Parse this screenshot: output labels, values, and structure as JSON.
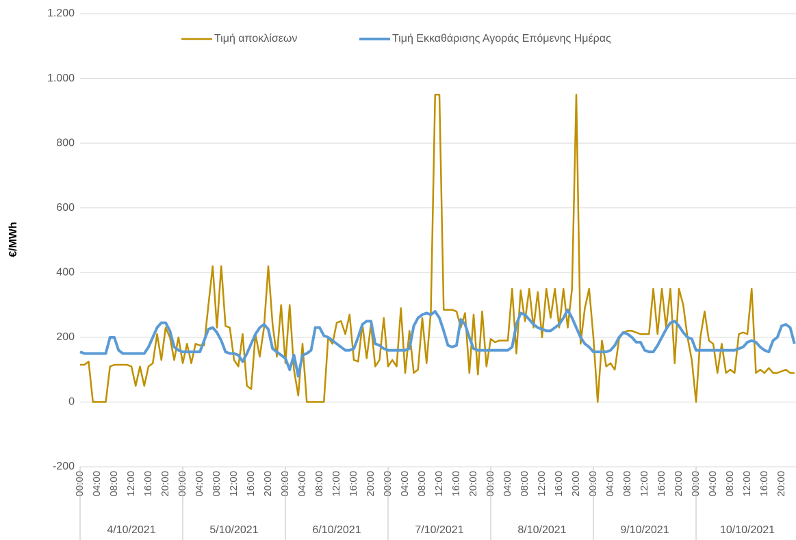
{
  "chart_data": {
    "type": "line",
    "y_label": "€/MWh",
    "ylim": [
      -200,
      1200
    ],
    "yticks": [
      -200,
      0,
      200,
      400,
      600,
      800,
      {
        "value": 1000,
        "label": "1.000"
      },
      {
        "value": 1200,
        "label": "1.200"
      }
    ],
    "grid": true,
    "legend": "top",
    "groups": [
      "4/10/2021",
      "5/10/2021",
      "6/10/2021",
      "7/10/2021",
      "8/10/2021",
      "9/10/2021",
      "10/10/2021"
    ],
    "categories": [
      "00:00",
      null,
      null,
      null,
      "04:00",
      null,
      null,
      null,
      "08:00",
      null,
      null,
      null,
      "12:00",
      null,
      null,
      null,
      "16:00",
      null,
      null,
      null,
      "20:00",
      null,
      null,
      null,
      "00:00",
      null,
      null,
      null,
      "04:00",
      null,
      null,
      null,
      "08:00",
      null,
      null,
      null,
      "12:00",
      null,
      null,
      null,
      "16:00",
      null,
      null,
      null,
      "20:00",
      null,
      null,
      null,
      "00:00",
      null,
      null,
      null,
      "04:00",
      null,
      null,
      null,
      "08:00",
      null,
      null,
      null,
      "12:00",
      null,
      null,
      null,
      "16:00",
      null,
      null,
      null,
      "20:00",
      null,
      null,
      null,
      "00:00",
      null,
      null,
      null,
      "04:00",
      null,
      null,
      null,
      "08:00",
      null,
      null,
      null,
      "12:00",
      null,
      null,
      null,
      "16:00",
      null,
      null,
      null,
      "20:00",
      null,
      null,
      null,
      "00:00",
      null,
      null,
      null,
      "04:00",
      null,
      null,
      null,
      "08:00",
      null,
      null,
      null,
      "12:00",
      null,
      null,
      null,
      "16:00",
      null,
      null,
      null,
      "20:00",
      null,
      null,
      null,
      "00:00",
      null,
      null,
      null,
      "04:00",
      null,
      null,
      null,
      "08:00",
      null,
      null,
      null,
      "12:00",
      null,
      null,
      null,
      "16:00",
      null,
      null,
      null,
      "20:00",
      null,
      null,
      null,
      "00:00",
      null,
      null,
      null,
      "04:00",
      null,
      null,
      null,
      "08:00",
      null,
      null,
      null,
      "12:00",
      null,
      null,
      null,
      "16:00",
      null,
      null,
      null,
      "20:00",
      null,
      null,
      null
    ],
    "series": [
      {
        "name": "Τιμή αποκλίσεων",
        "color": "#bf9000",
        "values": [
          115,
          115,
          125,
          0,
          0,
          0,
          0,
          110,
          115,
          115,
          115,
          115,
          110,
          50,
          110,
          50,
          110,
          120,
          210,
          130,
          230,
          200,
          130,
          200,
          120,
          180,
          120,
          180,
          175,
          175,
          300,
          420,
          230,
          420,
          235,
          230,
          130,
          110,
          210,
          50,
          40,
          210,
          140,
          230,
          420,
          240,
          140,
          300,
          120,
          300,
          100,
          20,
          180,
          0,
          0,
          0,
          0,
          0,
          200,
          180,
          245,
          250,
          210,
          270,
          130,
          125,
          240,
          135,
          240,
          110,
          130,
          260,
          110,
          130,
          110,
          290,
          90,
          220,
          90,
          100,
          260,
          120,
          280,
          950,
          950,
          285,
          285,
          285,
          280,
          230,
          275,
          90,
          270,
          85,
          280,
          110,
          195,
          185,
          190,
          190,
          190,
          350,
          150,
          345,
          250,
          350,
          230,
          340,
          200,
          350,
          260,
          350,
          230,
          350,
          230,
          350,
          950,
          180,
          290,
          350,
          200,
          0,
          190,
          110,
          120,
          100,
          195,
          215,
          220,
          220,
          215,
          210,
          210,
          210,
          350,
          210,
          350,
          230,
          350,
          120,
          350,
          300,
          200,
          130,
          0,
          200,
          280,
          190,
          180,
          90,
          180,
          90,
          100,
          90,
          210,
          215,
          210,
          350,
          90,
          100,
          90,
          105,
          90,
          90,
          95,
          100,
          90,
          90
        ]
      },
      {
        "name": "Τιμή Εκκαθάρισης Αγοράς Επόμενης Ημέρας",
        "color": "#5b9bd5",
        "values": [
          155,
          150,
          150,
          150,
          150,
          150,
          150,
          200,
          200,
          160,
          150,
          150,
          150,
          150,
          150,
          150,
          170,
          200,
          230,
          245,
          245,
          220,
          170,
          160,
          155,
          155,
          155,
          155,
          155,
          190,
          225,
          230,
          215,
          190,
          155,
          150,
          150,
          145,
          125,
          150,
          180,
          210,
          230,
          240,
          225,
          165,
          155,
          145,
          135,
          100,
          145,
          80,
          145,
          150,
          160,
          230,
          230,
          205,
          200,
          190,
          180,
          170,
          160,
          160,
          165,
          200,
          240,
          250,
          250,
          180,
          175,
          165,
          160,
          160,
          160,
          160,
          160,
          165,
          235,
          260,
          270,
          275,
          270,
          280,
          260,
          220,
          175,
          170,
          175,
          255,
          240,
          200,
          165,
          160,
          160,
          160,
          160,
          160,
          160,
          160,
          160,
          170,
          240,
          275,
          270,
          255,
          240,
          230,
          225,
          220,
          220,
          230,
          240,
          260,
          285,
          260,
          230,
          200,
          180,
          170,
          155,
          155,
          155,
          155,
          160,
          175,
          200,
          215,
          210,
          200,
          185,
          185,
          160,
          155,
          155,
          175,
          200,
          225,
          245,
          250,
          235,
          215,
          200,
          195,
          160,
          160,
          160,
          160,
          160,
          160,
          160,
          160,
          160,
          160,
          165,
          170,
          185,
          190,
          185,
          170,
          160,
          155,
          190,
          200,
          235,
          240,
          230,
          180
        ]
      }
    ]
  }
}
